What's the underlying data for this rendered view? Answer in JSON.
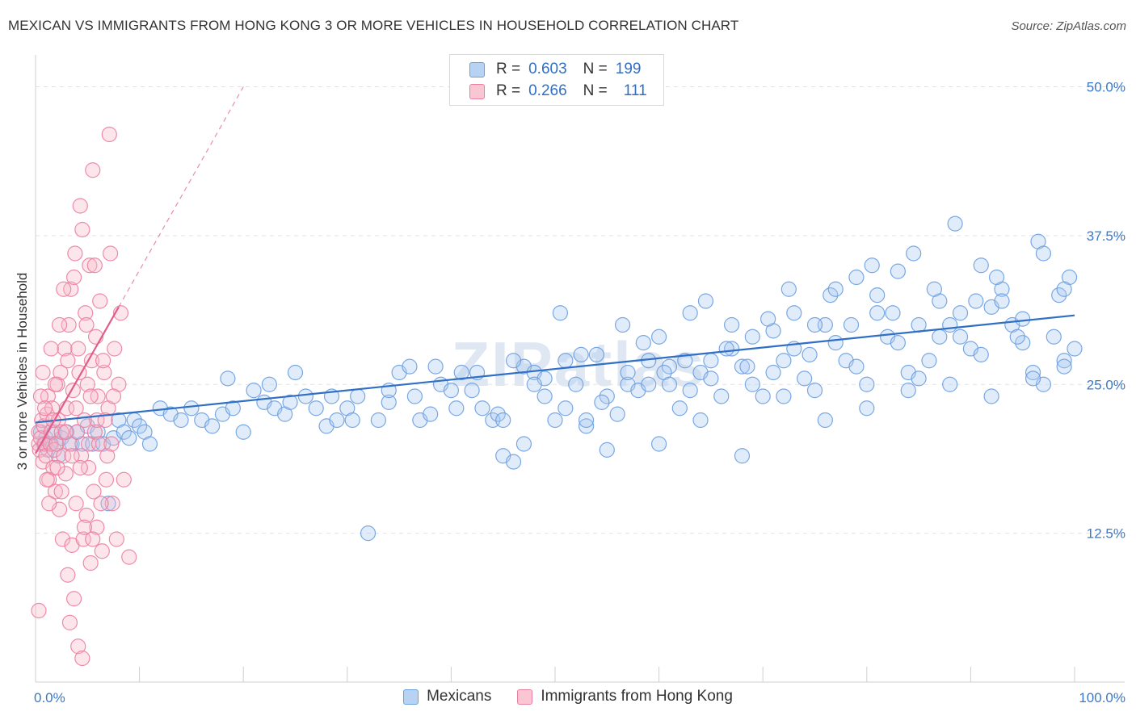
{
  "title": "MEXICAN VS IMMIGRANTS FROM HONG KONG 3 OR MORE VEHICLES IN HOUSEHOLD CORRELATION CHART",
  "source": "Source: ZipAtlas.com",
  "watermark": "ZIPatlas",
  "legend": {
    "rows": [
      {
        "r_label": "R =",
        "r_value": "0.603",
        "n_label": "N =",
        "n_value": "199",
        "color": "#a9c8f0"
      },
      {
        "r_label": "R =",
        "r_value": "0.266",
        "n_label": "N =",
        "n_value": "111",
        "color": "#f7b6c8"
      }
    ]
  },
  "bottom_legend": [
    {
      "label": "Mexicans",
      "color": "#a9c8f0"
    },
    {
      "label": "Immigrants from Hong Kong",
      "color": "#f7b6c8"
    }
  ],
  "chart_data": {
    "type": "scatter",
    "title": "MEXICAN VS IMMIGRANTS FROM HONG KONG 3 OR MORE VEHICLES IN HOUSEHOLD CORRELATION CHART",
    "xlabel": "",
    "ylabel": "3 or more Vehicles in Household",
    "xlim": [
      0,
      100
    ],
    "ylim": [
      0,
      52
    ],
    "x_tick_labels": [
      "0.0%",
      "100.0%"
    ],
    "y_ticks": [
      12.5,
      25.0,
      37.5,
      50.0
    ],
    "y_tick_labels": [
      "12.5%",
      "25.0%",
      "37.5%",
      "50.0%"
    ],
    "grid": true,
    "legend_position": "top-center",
    "series": [
      {
        "name": "Mexicans",
        "color": "#6a9fe0",
        "fill": "#a9c8f0",
        "trend": {
          "x": [
            0,
            100
          ],
          "y": [
            21.8,
            30.8
          ],
          "style": "solid",
          "color": "#2f6fc4"
        },
        "points": [
          [
            0.5,
            21
          ],
          [
            0.8,
            20
          ],
          [
            1,
            20.5
          ],
          [
            1.2,
            19.5
          ],
          [
            1.5,
            20
          ],
          [
            1.8,
            21
          ],
          [
            2,
            20
          ],
          [
            2.2,
            19
          ],
          [
            2.5,
            20.5
          ],
          [
            3,
            21
          ],
          [
            3.5,
            20
          ],
          [
            4,
            21
          ],
          [
            4.5,
            20
          ],
          [
            5,
            21.5
          ],
          [
            5.5,
            20
          ],
          [
            6,
            21
          ],
          [
            6.5,
            20
          ],
          [
            7,
            15
          ],
          [
            7.5,
            20.5
          ],
          [
            8,
            22
          ],
          [
            8.5,
            21
          ],
          [
            9,
            20.5
          ],
          [
            9.5,
            22
          ],
          [
            10,
            21.5
          ],
          [
            10.5,
            21
          ],
          [
            11,
            20
          ],
          [
            12,
            23
          ],
          [
            13,
            22.5
          ],
          [
            14,
            22
          ],
          [
            15,
            23
          ],
          [
            16,
            22
          ],
          [
            17,
            21.5
          ],
          [
            18,
            22.5
          ],
          [
            19,
            23
          ],
          [
            20,
            21
          ],
          [
            21,
            24.5
          ],
          [
            22,
            23.5
          ],
          [
            23,
            23
          ],
          [
            24,
            22.5
          ],
          [
            25,
            26
          ],
          [
            26,
            24
          ],
          [
            27,
            23
          ],
          [
            28,
            21.5
          ],
          [
            29,
            22
          ],
          [
            30,
            23
          ],
          [
            31,
            24
          ],
          [
            32,
            12.5
          ],
          [
            33,
            22
          ],
          [
            34,
            23.5
          ],
          [
            35,
            26
          ],
          [
            36,
            26.5
          ],
          [
            37,
            22
          ],
          [
            38,
            22.5
          ],
          [
            39,
            25
          ],
          [
            40,
            24.5
          ],
          [
            41,
            26
          ],
          [
            42,
            24.5
          ],
          [
            43,
            23
          ],
          [
            44,
            22
          ],
          [
            45,
            19
          ],
          [
            46,
            18.5
          ],
          [
            47,
            26.5
          ],
          [
            48,
            26
          ],
          [
            49,
            25.5
          ],
          [
            50,
            22
          ],
          [
            51,
            27
          ],
          [
            52,
            25
          ],
          [
            53,
            21.5
          ],
          [
            54,
            27.5
          ],
          [
            55,
            24
          ],
          [
            56,
            22.5
          ],
          [
            57,
            25
          ],
          [
            58,
            24.5
          ],
          [
            59,
            25
          ],
          [
            60,
            29
          ],
          [
            61,
            26.5
          ],
          [
            62,
            23
          ],
          [
            63,
            31
          ],
          [
            64,
            26
          ],
          [
            65,
            25.5
          ],
          [
            66,
            24
          ],
          [
            67,
            28
          ],
          [
            68,
            26.5
          ],
          [
            69,
            25
          ],
          [
            70,
            24
          ],
          [
            71,
            29.5
          ],
          [
            72,
            27
          ],
          [
            73,
            28
          ],
          [
            74,
            25.5
          ],
          [
            75,
            24.5
          ],
          [
            76,
            30
          ],
          [
            77,
            28.5
          ],
          [
            78,
            27
          ],
          [
            79,
            26.5
          ],
          [
            80,
            25
          ],
          [
            81,
            31
          ],
          [
            82,
            29
          ],
          [
            83,
            28.5
          ],
          [
            84,
            26
          ],
          [
            85,
            25.5
          ],
          [
            86,
            27
          ],
          [
            87,
            32
          ],
          [
            88,
            30
          ],
          [
            89,
            29
          ],
          [
            90,
            28
          ],
          [
            91,
            27.5
          ],
          [
            92,
            31.5
          ],
          [
            93,
            33
          ],
          [
            94,
            30
          ],
          [
            95,
            28.5
          ],
          [
            96,
            26
          ],
          [
            97,
            25
          ],
          [
            98,
            29
          ],
          [
            99,
            27
          ],
          [
            100,
            28
          ],
          [
            18.5,
            25.5
          ],
          [
            22.5,
            25
          ],
          [
            24.5,
            23.5
          ],
          [
            28.5,
            24
          ],
          [
            30.5,
            22
          ],
          [
            34,
            24.5
          ],
          [
            36.5,
            24
          ],
          [
            38.5,
            26.5
          ],
          [
            40.5,
            23
          ],
          [
            42.5,
            26
          ],
          [
            44.5,
            22.5
          ],
          [
            46,
            27
          ],
          [
            48,
            25
          ],
          [
            50.5,
            31
          ],
          [
            52.5,
            27.5
          ],
          [
            54.5,
            23.5
          ],
          [
            56.5,
            30
          ],
          [
            58.5,
            28.5
          ],
          [
            60.5,
            26
          ],
          [
            62.5,
            27
          ],
          [
            64.5,
            32
          ],
          [
            66.5,
            28
          ],
          [
            68.5,
            26.5
          ],
          [
            70.5,
            30.5
          ],
          [
            72.5,
            33
          ],
          [
            74.5,
            27.5
          ],
          [
            76.5,
            32.5
          ],
          [
            78.5,
            30
          ],
          [
            80.5,
            35
          ],
          [
            82.5,
            31
          ],
          [
            84.5,
            36
          ],
          [
            86.5,
            33
          ],
          [
            88.5,
            38.5
          ],
          [
            90.5,
            32
          ],
          [
            92.5,
            34
          ],
          [
            94.5,
            29
          ],
          [
            96.5,
            37
          ],
          [
            98.5,
            32.5
          ],
          [
            99.5,
            34
          ],
          [
            55,
            19.5
          ],
          [
            60,
            20
          ],
          [
            64,
            22
          ],
          [
            68,
            19
          ],
          [
            72,
            24
          ],
          [
            76,
            22
          ],
          [
            80,
            23
          ],
          [
            84,
            24.5
          ],
          [
            88,
            25
          ],
          [
            92,
            24
          ],
          [
            96,
            25.5
          ],
          [
            99,
            26.5
          ],
          [
            45,
            22
          ],
          [
            47,
            20
          ],
          [
            49,
            24
          ],
          [
            51,
            23
          ],
          [
            53,
            22
          ],
          [
            57,
            26
          ],
          [
            59,
            27
          ],
          [
            61,
            25
          ],
          [
            63,
            24.5
          ],
          [
            65,
            27
          ],
          [
            67,
            30
          ],
          [
            69,
            29
          ],
          [
            71,
            26
          ],
          [
            73,
            31
          ],
          [
            75,
            30
          ],
          [
            77,
            33
          ],
          [
            79,
            34
          ],
          [
            81,
            32.5
          ],
          [
            83,
            34.5
          ],
          [
            85,
            30
          ],
          [
            87,
            29
          ],
          [
            89,
            31
          ],
          [
            91,
            35
          ],
          [
            93,
            32
          ],
          [
            95,
            30.5
          ],
          [
            97,
            36
          ],
          [
            99,
            33
          ]
        ]
      },
      {
        "name": "Immigrants from Hong Kong",
        "color": "#ec7ea0",
        "fill": "#f7b6c8",
        "trend": {
          "x": [
            0,
            8
          ],
          "y": [
            19.2,
            31.5
          ],
          "style": "solid",
          "dashed_extension_to": [
            20,
            50
          ],
          "color": "#e05c8a"
        },
        "points": [
          [
            0.2,
            20
          ],
          [
            0.3,
            21
          ],
          [
            0.4,
            19.5
          ],
          [
            0.5,
            20.5
          ],
          [
            0.6,
            22
          ],
          [
            0.7,
            18.5
          ],
          [
            0.8,
            21.5
          ],
          [
            0.9,
            20
          ],
          [
            1,
            19
          ],
          [
            1.1,
            22.5
          ],
          [
            1.2,
            24
          ],
          [
            1.3,
            17
          ],
          [
            1.4,
            20
          ],
          [
            1.5,
            21
          ],
          [
            1.6,
            23
          ],
          [
            1.7,
            18
          ],
          [
            1.8,
            19.5
          ],
          [
            1.9,
            16
          ],
          [
            2,
            20
          ],
          [
            2.1,
            25
          ],
          [
            2.2,
            22
          ],
          [
            2.3,
            14.5
          ],
          [
            2.4,
            26
          ],
          [
            2.5,
            21
          ],
          [
            2.6,
            12
          ],
          [
            2.7,
            19
          ],
          [
            2.8,
            28
          ],
          [
            2.9,
            17.5
          ],
          [
            3,
            23
          ],
          [
            3.1,
            9
          ],
          [
            3.2,
            30
          ],
          [
            3.3,
            20
          ],
          [
            3.4,
            33
          ],
          [
            3.5,
            11.5
          ],
          [
            3.6,
            24.5
          ],
          [
            3.7,
            7
          ],
          [
            3.8,
            36
          ],
          [
            3.9,
            15
          ],
          [
            4,
            21
          ],
          [
            4.1,
            3
          ],
          [
            4.2,
            26
          ],
          [
            4.3,
            40
          ],
          [
            4.4,
            19
          ],
          [
            4.5,
            2
          ],
          [
            4.6,
            12
          ],
          [
            4.7,
            22
          ],
          [
            4.8,
            31
          ],
          [
            4.9,
            14
          ],
          [
            5,
            25
          ],
          [
            5.1,
            18
          ],
          [
            5.2,
            35
          ],
          [
            5.3,
            10
          ],
          [
            5.4,
            27
          ],
          [
            5.5,
            43
          ],
          [
            5.6,
            16
          ],
          [
            5.7,
            21
          ],
          [
            5.8,
            29
          ],
          [
            5.9,
            13
          ],
          [
            6,
            24
          ],
          [
            6.2,
            32
          ],
          [
            6.4,
            11
          ],
          [
            6.6,
            26
          ],
          [
            6.8,
            17
          ],
          [
            7,
            23
          ],
          [
            7.2,
            36
          ],
          [
            7.4,
            15
          ],
          [
            7.6,
            28
          ],
          [
            7.8,
            12
          ],
          [
            8,
            25
          ],
          [
            8.2,
            31
          ],
          [
            8.5,
            17
          ],
          [
            9,
            10.5
          ],
          [
            0.3,
            6
          ],
          [
            0.5,
            24
          ],
          [
            0.7,
            26
          ],
          [
            0.9,
            23
          ],
          [
            1.1,
            17
          ],
          [
            1.3,
            15
          ],
          [
            1.5,
            28
          ],
          [
            1.7,
            22
          ],
          [
            1.9,
            25
          ],
          [
            2.1,
            18
          ],
          [
            2.3,
            30
          ],
          [
            2.5,
            16
          ],
          [
            2.7,
            33
          ],
          [
            2.9,
            21
          ],
          [
            3.1,
            27
          ],
          [
            3.3,
            5
          ],
          [
            3.5,
            19
          ],
          [
            3.7,
            34
          ],
          [
            3.9,
            23
          ],
          [
            4.1,
            28
          ],
          [
            4.3,
            18
          ],
          [
            4.5,
            38
          ],
          [
            4.7,
            13
          ],
          [
            4.9,
            30
          ],
          [
            5.1,
            20
          ],
          [
            5.3,
            24
          ],
          [
            5.5,
            12
          ],
          [
            5.7,
            35
          ],
          [
            5.9,
            22
          ],
          [
            6.1,
            20
          ],
          [
            6.3,
            15
          ],
          [
            6.5,
            27
          ],
          [
            6.7,
            22
          ],
          [
            6.9,
            19
          ],
          [
            7.1,
            46
          ],
          [
            7.3,
            20
          ],
          [
            7.5,
            24
          ]
        ]
      }
    ]
  }
}
